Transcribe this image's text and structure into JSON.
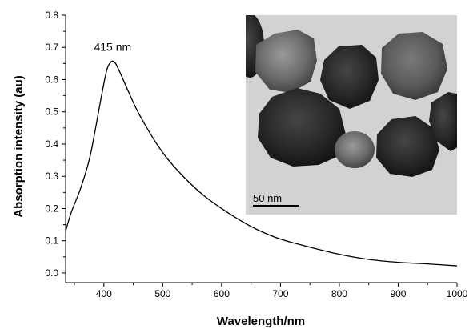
{
  "chart_data": {
    "type": "line",
    "title": "",
    "xlabel": "Wavelength/nm",
    "ylabel": "Absorption intensity (au)",
    "xlim": [
      335,
      1000
    ],
    "ylim": [
      -0.03,
      0.8
    ],
    "x_ticks": [
      400,
      500,
      600,
      700,
      800,
      900,
      1000
    ],
    "y_ticks": [
      0.0,
      0.1,
      0.2,
      0.3,
      0.4,
      0.5,
      0.6,
      0.7,
      0.8
    ],
    "x_tick_labels": [
      "400",
      "500",
      "600",
      "700",
      "800",
      "900",
      "1000"
    ],
    "y_tick_labels": [
      "0.0",
      "0.1",
      "0.2",
      "0.3",
      "0.4",
      "0.5",
      "0.6",
      "0.7",
      "0.8"
    ],
    "grid": false,
    "series": [
      {
        "x": [
          335,
          345,
          360,
          375,
          385,
          395,
          405,
          412,
          415,
          420,
          428,
          440,
          455,
          470,
          490,
          510,
          540,
          570,
          600,
          630,
          660,
          700,
          750,
          800,
          850,
          900,
          950,
          1000
        ],
        "y": [
          0.13,
          0.19,
          0.26,
          0.35,
          0.44,
          0.54,
          0.63,
          0.655,
          0.657,
          0.65,
          0.62,
          0.57,
          0.51,
          0.46,
          0.4,
          0.35,
          0.29,
          0.24,
          0.2,
          0.165,
          0.135,
          0.105,
          0.08,
          0.058,
          0.042,
          0.033,
          0.028,
          0.022
        ]
      }
    ],
    "annotations": [
      {
        "text": "415 nm",
        "x": 415,
        "y": 0.69
      }
    ]
  },
  "inset": {
    "type": "TEM micrograph",
    "scale_bar_label": "50 nm"
  }
}
